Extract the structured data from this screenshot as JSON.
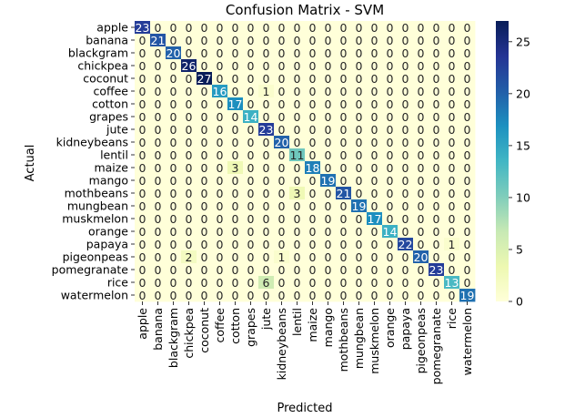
{
  "chart_data": {
    "type": "heatmap",
    "title": "Confusion Matrix - SVM",
    "xlabel": "Predicted",
    "ylabel": "Actual",
    "labels": [
      "apple",
      "banana",
      "blackgram",
      "chickpea",
      "coconut",
      "coffee",
      "cotton",
      "grapes",
      "jute",
      "kidneybeans",
      "lentil",
      "maize",
      "mango",
      "mothbeans",
      "mungbean",
      "muskmelon",
      "orange",
      "papaya",
      "pigeonpeas",
      "pomegranate",
      "rice",
      "watermelon"
    ],
    "matrix": [
      [
        23,
        0,
        0,
        0,
        0,
        0,
        0,
        0,
        0,
        0,
        0,
        0,
        0,
        0,
        0,
        0,
        0,
        0,
        0,
        0,
        0,
        0
      ],
      [
        0,
        21,
        0,
        0,
        0,
        0,
        0,
        0,
        0,
        0,
        0,
        0,
        0,
        0,
        0,
        0,
        0,
        0,
        0,
        0,
        0,
        0
      ],
      [
        0,
        0,
        20,
        0,
        0,
        0,
        0,
        0,
        0,
        0,
        0,
        0,
        0,
        0,
        0,
        0,
        0,
        0,
        0,
        0,
        0,
        0
      ],
      [
        0,
        0,
        0,
        26,
        0,
        0,
        0,
        0,
        0,
        0,
        0,
        0,
        0,
        0,
        0,
        0,
        0,
        0,
        0,
        0,
        0,
        0
      ],
      [
        0,
        0,
        0,
        0,
        27,
        0,
        0,
        0,
        0,
        0,
        0,
        0,
        0,
        0,
        0,
        0,
        0,
        0,
        0,
        0,
        0,
        0
      ],
      [
        0,
        0,
        0,
        0,
        0,
        16,
        0,
        0,
        1,
        0,
        0,
        0,
        0,
        0,
        0,
        0,
        0,
        0,
        0,
        0,
        0,
        0
      ],
      [
        0,
        0,
        0,
        0,
        0,
        0,
        17,
        0,
        0,
        0,
        0,
        0,
        0,
        0,
        0,
        0,
        0,
        0,
        0,
        0,
        0,
        0
      ],
      [
        0,
        0,
        0,
        0,
        0,
        0,
        0,
        14,
        0,
        0,
        0,
        0,
        0,
        0,
        0,
        0,
        0,
        0,
        0,
        0,
        0,
        0
      ],
      [
        0,
        0,
        0,
        0,
        0,
        0,
        0,
        0,
        23,
        0,
        0,
        0,
        0,
        0,
        0,
        0,
        0,
        0,
        0,
        0,
        0,
        0
      ],
      [
        0,
        0,
        0,
        0,
        0,
        0,
        0,
        0,
        0,
        20,
        0,
        0,
        0,
        0,
        0,
        0,
        0,
        0,
        0,
        0,
        0,
        0
      ],
      [
        0,
        0,
        0,
        0,
        0,
        0,
        0,
        0,
        0,
        0,
        11,
        0,
        0,
        0,
        0,
        0,
        0,
        0,
        0,
        0,
        0,
        0
      ],
      [
        0,
        0,
        0,
        0,
        0,
        0,
        3,
        0,
        0,
        0,
        0,
        18,
        0,
        0,
        0,
        0,
        0,
        0,
        0,
        0,
        0,
        0
      ],
      [
        0,
        0,
        0,
        0,
        0,
        0,
        0,
        0,
        0,
        0,
        0,
        0,
        19,
        0,
        0,
        0,
        0,
        0,
        0,
        0,
        0,
        0
      ],
      [
        0,
        0,
        0,
        0,
        0,
        0,
        0,
        0,
        0,
        0,
        3,
        0,
        0,
        21,
        0,
        0,
        0,
        0,
        0,
        0,
        0,
        0
      ],
      [
        0,
        0,
        0,
        0,
        0,
        0,
        0,
        0,
        0,
        0,
        0,
        0,
        0,
        0,
        19,
        0,
        0,
        0,
        0,
        0,
        0,
        0
      ],
      [
        0,
        0,
        0,
        0,
        0,
        0,
        0,
        0,
        0,
        0,
        0,
        0,
        0,
        0,
        0,
        17,
        0,
        0,
        0,
        0,
        0,
        0
      ],
      [
        0,
        0,
        0,
        0,
        0,
        0,
        0,
        0,
        0,
        0,
        0,
        0,
        0,
        0,
        0,
        0,
        14,
        0,
        0,
        0,
        0,
        0
      ],
      [
        0,
        0,
        0,
        0,
        0,
        0,
        0,
        0,
        0,
        0,
        0,
        0,
        0,
        0,
        0,
        0,
        0,
        22,
        0,
        0,
        1,
        0
      ],
      [
        0,
        0,
        0,
        2,
        0,
        0,
        0,
        0,
        0,
        1,
        0,
        0,
        0,
        0,
        0,
        0,
        0,
        0,
        20,
        0,
        0,
        0
      ],
      [
        0,
        0,
        0,
        0,
        0,
        0,
        0,
        0,
        0,
        0,
        0,
        0,
        0,
        0,
        0,
        0,
        0,
        0,
        0,
        23,
        0,
        0
      ],
      [
        0,
        0,
        0,
        0,
        0,
        0,
        0,
        0,
        6,
        0,
        0,
        0,
        0,
        0,
        0,
        0,
        0,
        0,
        0,
        0,
        13,
        0
      ],
      [
        0,
        0,
        0,
        0,
        0,
        0,
        0,
        0,
        0,
        0,
        0,
        0,
        0,
        0,
        0,
        0,
        0,
        0,
        0,
        0,
        0,
        19
      ]
    ],
    "colorbar": {
      "colormap": "YlGnBu",
      "range": [
        0,
        27
      ],
      "ticks": [
        0,
        5,
        10,
        15,
        20,
        25
      ]
    }
  }
}
